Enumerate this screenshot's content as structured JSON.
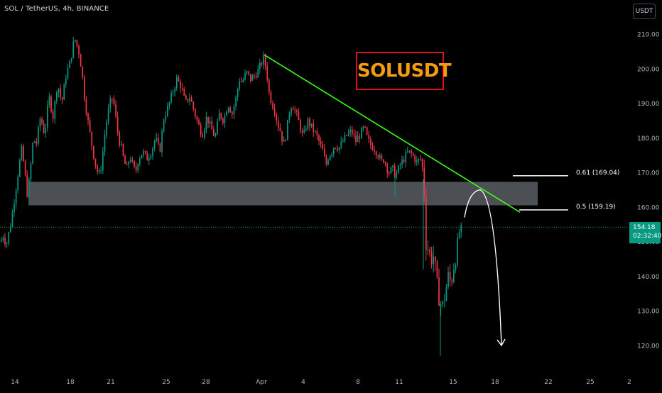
{
  "header": {
    "symbol_title": "SOL / TetherUS, 4h, BINANCE",
    "currency_button": "USDT"
  },
  "badge": {
    "label": "SOLUSDT"
  },
  "annotations": {
    "fib_061": "0.61 (169.04)",
    "fib_05": "0.5 (159.19)"
  },
  "last_price": {
    "value": "154.18",
    "countdown": "02:32:40"
  },
  "colors": {
    "background": "#000000",
    "up_candle": "#089981",
    "down_candle": "#f23645",
    "trendline": "#39ff14",
    "zone_fill": "#5d6066",
    "badge_border": "#e0101b",
    "badge_text": "#f39c12",
    "price_line": "#089981"
  },
  "chart_data": {
    "type": "candlestick",
    "title": "SOL / TetherUS, 4h, BINANCE",
    "y_axis": {
      "ticks": [
        210,
        200,
        190,
        180,
        170,
        160,
        150,
        140,
        130,
        120
      ],
      "tick_labels": [
        "210.00",
        "200.00",
        "190.00",
        "180.00",
        "170.00",
        "160.00",
        "150.00",
        "140.00",
        "130.00",
        "120.00"
      ],
      "range": [
        114,
        216
      ]
    },
    "x_axis": {
      "tick_labels": [
        "14",
        "18",
        "21",
        "25",
        "28",
        "Apr",
        "4",
        "8",
        "11",
        "15",
        "18",
        "22",
        "25",
        "2"
      ]
    },
    "price_path": [
      [
        0,
        150
      ],
      [
        4,
        152
      ],
      [
        8,
        149
      ],
      [
        14,
        155
      ],
      [
        20,
        163
      ],
      [
        26,
        172
      ],
      [
        30,
        177
      ],
      [
        34,
        170
      ],
      [
        38,
        163
      ],
      [
        42,
        171
      ],
      [
        46,
        180
      ],
      [
        50,
        178
      ],
      [
        56,
        186
      ],
      [
        62,
        181
      ],
      [
        68,
        192
      ],
      [
        74,
        186
      ],
      [
        80,
        196
      ],
      [
        86,
        190
      ],
      [
        92,
        198
      ],
      [
        98,
        202
      ],
      [
        104,
        209
      ],
      [
        110,
        205
      ],
      [
        114,
        200
      ],
      [
        118,
        192
      ],
      [
        122,
        186
      ],
      [
        126,
        181
      ],
      [
        130,
        176
      ],
      [
        134,
        172
      ],
      [
        138,
        169
      ],
      [
        142,
        172
      ],
      [
        146,
        180
      ],
      [
        150,
        186
      ],
      [
        154,
        190
      ],
      [
        158,
        192
      ],
      [
        162,
        186
      ],
      [
        166,
        180
      ],
      [
        170,
        177
      ],
      [
        174,
        173
      ],
      [
        178,
        171
      ],
      [
        182,
        175
      ],
      [
        186,
        172
      ],
      [
        190,
        170
      ],
      [
        194,
        174
      ],
      [
        200,
        176
      ],
      [
        206,
        174
      ],
      [
        212,
        176
      ],
      [
        218,
        180
      ],
      [
        224,
        176
      ],
      [
        230,
        186
      ],
      [
        236,
        189
      ],
      [
        242,
        193
      ],
      [
        248,
        197
      ],
      [
        254,
        195
      ],
      [
        260,
        190
      ],
      [
        266,
        192
      ],
      [
        272,
        188
      ],
      [
        278,
        184
      ],
      [
        284,
        181
      ],
      [
        290,
        186
      ],
      [
        296,
        183
      ],
      [
        302,
        180
      ],
      [
        308,
        187
      ],
      [
        314,
        185
      ],
      [
        320,
        190
      ],
      [
        326,
        187
      ],
      [
        332,
        192
      ],
      [
        336,
        197
      ],
      [
        340,
        196
      ],
      [
        346,
        199
      ],
      [
        352,
        197
      ],
      [
        358,
        198
      ],
      [
        364,
        200
      ],
      [
        370,
        203
      ],
      [
        374,
        200
      ],
      [
        378,
        193
      ],
      [
        382,
        190
      ],
      [
        386,
        188
      ],
      [
        390,
        184
      ],
      [
        394,
        182
      ],
      [
        398,
        178
      ],
      [
        402,
        181
      ],
      [
        406,
        187
      ],
      [
        410,
        190
      ],
      [
        414,
        188
      ],
      [
        418,
        186
      ],
      [
        422,
        183
      ],
      [
        426,
        180
      ],
      [
        432,
        185
      ],
      [
        438,
        183
      ],
      [
        444,
        181
      ],
      [
        450,
        178
      ],
      [
        454,
        176
      ],
      [
        458,
        172
      ],
      [
        462,
        175
      ],
      [
        466,
        176
      ],
      [
        470,
        178
      ],
      [
        476,
        177
      ],
      [
        482,
        179
      ],
      [
        488,
        181
      ],
      [
        494,
        182
      ],
      [
        500,
        179
      ],
      [
        506,
        181
      ],
      [
        512,
        183
      ],
      [
        516,
        180
      ],
      [
        520,
        178
      ],
      [
        526,
        177
      ],
      [
        532,
        175
      ],
      [
        536,
        173
      ],
      [
        540,
        174
      ],
      [
        546,
        170
      ],
      [
        552,
        171
      ],
      [
        556,
        169
      ],
      [
        562,
        172
      ],
      [
        568,
        174
      ],
      [
        574,
        176
      ],
      [
        580,
        175
      ],
      [
        586,
        173
      ],
      [
        592,
        174
      ],
      [
        596,
        168
      ],
      [
        598,
        150
      ],
      [
        602,
        148
      ],
      [
        606,
        145
      ],
      [
        610,
        146
      ],
      [
        614,
        138
      ],
      [
        618,
        133
      ],
      [
        622,
        131
      ],
      [
        626,
        135
      ],
      [
        630,
        140
      ],
      [
        634,
        138
      ],
      [
        638,
        143
      ],
      [
        642,
        147
      ],
      [
        646,
        153
      ],
      [
        650,
        154.18
      ]
    ],
    "spikes": [
      [
        620,
        117
      ],
      [
        596,
        142
      ],
      [
        556,
        163
      ]
    ],
    "resistance_zone": [
      160.5,
      167.3
    ],
    "trendline": {
      "from": [
        372,
        204
      ],
      "to": [
        732,
        158.5
      ]
    },
    "fib_levels": [
      {
        "label": "0.61 (169.04)",
        "price": 169.04
      },
      {
        "label": "0.5 (159.19)",
        "price": 159.19
      }
    ],
    "projection_path": {
      "start": [
        654,
        157
      ],
      "peak": [
        676,
        165
      ],
      "end": [
        706,
        120
      ]
    },
    "last_price": 154.18
  }
}
